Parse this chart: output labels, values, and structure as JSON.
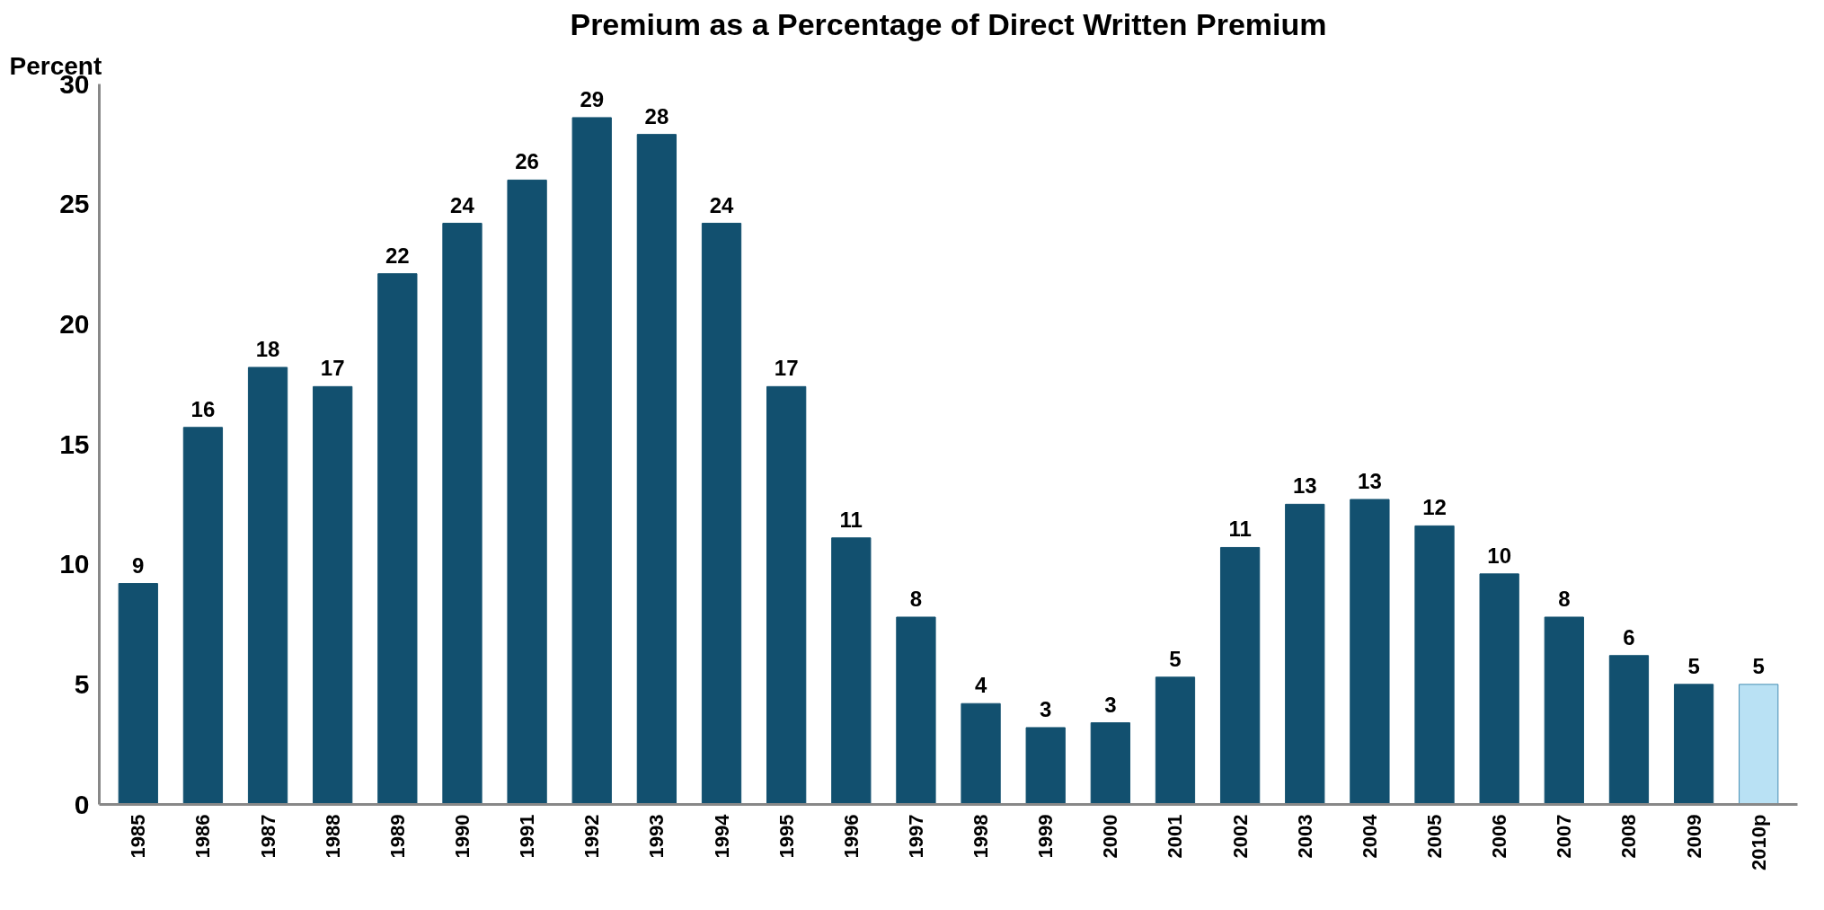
{
  "chart_data": {
    "type": "bar",
    "title": "Premium as a Percentage of Direct Written Premium",
    "ylabel": "Percent",
    "categories": [
      "1985",
      "1986",
      "1987",
      "1988",
      "1989",
      "1990",
      "1991",
      "1992",
      "1993",
      "1994",
      "1995",
      "1996",
      "1997",
      "1998",
      "1999",
      "2000",
      "2001",
      "2002",
      "2003",
      "2004",
      "2005",
      "2006",
      "2007",
      "2008",
      "2009",
      "2010p"
    ],
    "values": [
      9.2,
      15.7,
      18.2,
      17.4,
      22.1,
      24.2,
      26.0,
      28.6,
      27.9,
      24.2,
      17.4,
      11.1,
      7.8,
      4.2,
      3.2,
      3.4,
      5.3,
      10.7,
      12.5,
      12.7,
      11.6,
      9.6,
      7.8,
      6.2,
      5.0,
      5.0
    ],
    "value_labels": [
      "9",
      "16",
      "18",
      "17",
      "22",
      "24",
      "26",
      "29",
      "28",
      "24",
      "17",
      "11",
      "8",
      "4",
      "3",
      "3",
      "5",
      "11",
      "13",
      "13",
      "12",
      "10",
      "8",
      "6",
      "5",
      "5"
    ],
    "colors": [
      "#12506f",
      "#12506f",
      "#12506f",
      "#12506f",
      "#12506f",
      "#12506f",
      "#12506f",
      "#12506f",
      "#12506f",
      "#12506f",
      "#12506f",
      "#12506f",
      "#12506f",
      "#12506f",
      "#12506f",
      "#12506f",
      "#12506f",
      "#12506f",
      "#12506f",
      "#12506f",
      "#12506f",
      "#12506f",
      "#12506f",
      "#12506f",
      "#12506f",
      "#b9e1f4"
    ],
    "ylim": [
      0,
      30
    ],
    "yticks": [
      0,
      5,
      10,
      15,
      20,
      25,
      30
    ],
    "grid": false
  }
}
